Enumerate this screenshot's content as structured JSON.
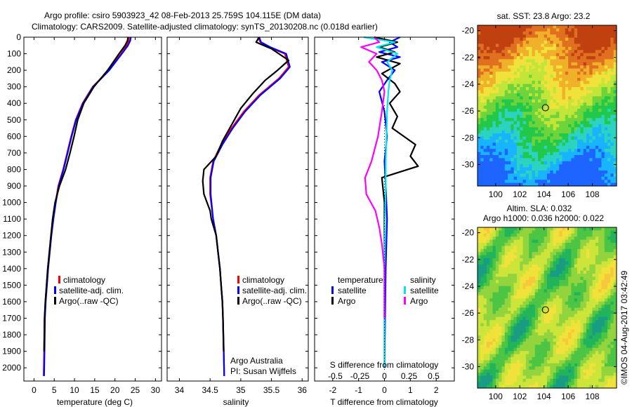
{
  "header": {
    "line1": "Argo profile: csiro 5903923_42 08-Feb-2013 25.759S 104.115E (DM data)",
    "line2": "Climatology: CARS2009. Satellite-adjusted climatology: synTS_20130208.nc (0.018d earlier)"
  },
  "side_label": "©IMOS 04-Aug-2017 03:42:49",
  "colors": {
    "climatology": "#ff0000",
    "satellite": "#0000ff",
    "argo": "#000000",
    "salinity_satellite": "#00e5ee",
    "salinity_argo": "#ff00ff"
  },
  "chart_data": [
    {
      "type": "line",
      "id": "temperature",
      "xlabel": "temperature (deg C)",
      "xticks": [
        0,
        5,
        10,
        15,
        20,
        25,
        30
      ],
      "xlim": [
        -2.5,
        31.5
      ],
      "ylim": [
        0,
        2080
      ],
      "yticks": [
        0,
        100,
        200,
        300,
        400,
        500,
        600,
        700,
        800,
        900,
        1000,
        1100,
        1200,
        1300,
        1400,
        1500,
        1600,
        1700,
        1800,
        1900,
        2000
      ],
      "legend": [
        "climatology",
        "satellite-adj. clim.",
        "Argo(..raw -QC)"
      ],
      "series": [
        {
          "name": "climatology",
          "color": "#ff0000",
          "x": [
            23.5,
            23.4,
            22.9,
            21.5,
            18.5,
            14.5,
            12,
            10.3,
            9.2,
            8.2,
            7.2,
            6,
            5.3,
            4.7,
            4.2,
            3.8,
            3.4,
            3.1,
            2.8,
            2.6,
            2.5,
            2.4
          ],
          "y": [
            0,
            20,
            50,
            100,
            200,
            300,
            400,
            500,
            600,
            700,
            800,
            900,
            1000,
            1100,
            1200,
            1300,
            1400,
            1500,
            1600,
            1700,
            1900,
            2050
          ]
        },
        {
          "name": "satellite-adj. clim.",
          "color": "#0000ff",
          "x": [
            23.9,
            23.8,
            23.2,
            21.7,
            18.6,
            14.6,
            12.1,
            10.4,
            9.3,
            8.3,
            7.3,
            6.1,
            5.4,
            4.8,
            4.3,
            3.9,
            3.5,
            3.2,
            2.9,
            2.7,
            2.6,
            2.5
          ],
          "y": [
            0,
            20,
            50,
            100,
            200,
            300,
            400,
            500,
            600,
            700,
            800,
            900,
            1000,
            1100,
            1200,
            1300,
            1400,
            1500,
            1600,
            1700,
            1900,
            2050
          ]
        },
        {
          "name": "Argo(..raw -QC)",
          "color": "#000000",
          "x": [
            23.2,
            23.1,
            22.5,
            21,
            18.2,
            14.8,
            12.3,
            10.8,
            9.9,
            8.9,
            7.8,
            6.3,
            5.2,
            4.6,
            4.2,
            3.8,
            3.4,
            3.1,
            2.8,
            2.6,
            2.5
          ],
          "y": [
            0,
            20,
            50,
            100,
            200,
            300,
            400,
            500,
            600,
            700,
            800,
            900,
            1000,
            1100,
            1200,
            1300,
            1400,
            1500,
            1600,
            1700,
            1900
          ]
        }
      ]
    },
    {
      "type": "line",
      "id": "salinity",
      "xlabel": "salinity",
      "xticks": [
        34,
        34.5,
        35,
        35.5,
        36
      ],
      "xlim": [
        33.8,
        36.1
      ],
      "ylim": [
        0,
        2080
      ],
      "legend": [
        "climatology",
        "satellite-adj. clim.",
        "Argo(..raw -QC)"
      ],
      "annotation": [
        "Argo Australia",
        "PI: Susan Wijffels"
      ],
      "series": [
        {
          "name": "climatology",
          "color": "#ff0000",
          "x": [
            35.28,
            35.32,
            35.45,
            35.72,
            35.78,
            35.62,
            35.3,
            35.05,
            34.85,
            34.68,
            34.55,
            34.5,
            34.5,
            34.55,
            34.6,
            34.63,
            34.66,
            34.68,
            34.7,
            34.71,
            34.72,
            34.73
          ],
          "y": [
            0,
            30,
            60,
            100,
            180,
            250,
            350,
            450,
            550,
            650,
            750,
            850,
            950,
            1100,
            1200,
            1300,
            1400,
            1500,
            1600,
            1700,
            1850,
            2050
          ]
        },
        {
          "name": "satellite-adj. clim.",
          "color": "#0000ff",
          "x": [
            35.3,
            35.33,
            35.48,
            35.74,
            35.8,
            35.64,
            35.32,
            35.07,
            34.87,
            34.7,
            34.56,
            34.51,
            34.51,
            34.55,
            34.6,
            34.63,
            34.66,
            34.68,
            34.7,
            34.71,
            34.72,
            34.73
          ],
          "y": [
            0,
            30,
            60,
            100,
            180,
            250,
            350,
            450,
            550,
            650,
            750,
            850,
            950,
            1100,
            1200,
            1300,
            1400,
            1500,
            1600,
            1700,
            1850,
            2050
          ]
        },
        {
          "name": "Argo(..raw -QC)",
          "color": "#000000",
          "x": [
            35.3,
            35.25,
            35.5,
            35.78,
            35.6,
            35.4,
            35.2,
            35,
            34.85,
            34.7,
            34.6,
            34.4,
            34.38,
            34.4,
            34.5,
            34.52,
            34.6,
            34.63,
            34.66,
            34.68,
            34.7,
            34.71,
            34.72
          ],
          "y": [
            0,
            30,
            70,
            140,
            200,
            260,
            340,
            430,
            530,
            630,
            720,
            800,
            870,
            950,
            1050,
            1100,
            1200,
            1300,
            1400,
            1500,
            1600,
            1700,
            1900
          ]
        }
      ]
    },
    {
      "type": "line",
      "id": "difference",
      "xlabel": "T difference from climatology",
      "top_xlabel": "S difference from climatology",
      "xticks": [
        -2,
        -1,
        0,
        1,
        2
      ],
      "top_xticks": [
        "-0.5",
        "-0.25",
        "0",
        "0.25",
        "0.5"
      ],
      "xlim": [
        -2.7,
        2.7
      ],
      "ylim": [
        0,
        2080
      ],
      "legend_titles": [
        "temperature",
        "salinity"
      ],
      "legend_entries": [
        "satellite",
        "Argo",
        "satellite",
        "Argo"
      ],
      "series": [
        {
          "name": "temperature satellite",
          "color": "#0000ff",
          "x": [
            0.6,
            0.2,
            0.5,
            -0.2,
            0.6,
            -0.1,
            0.4,
            0.1,
            -0.2,
            0,
            0.1,
            0,
            0.05,
            0.1,
            0.05,
            0
          ],
          "y": [
            0,
            30,
            60,
            90,
            120,
            150,
            200,
            260,
            330,
            450,
            600,
            750,
            900,
            1100,
            1400,
            2000
          ]
        },
        {
          "name": "temperature Argo",
          "color": "#000000",
          "x": [
            -0.4,
            0.5,
            -0.2,
            0.4,
            -0.3,
            0.6,
            -0.1,
            0.4,
            0.6,
            0.2,
            0.5,
            0.3,
            1.2,
            1,
            1.3,
            -0.1,
            0,
            0,
            0,
            0,
            0,
            0
          ],
          "y": [
            0,
            30,
            60,
            90,
            120,
            160,
            220,
            280,
            330,
            400,
            480,
            550,
            650,
            720,
            780,
            850,
            1000,
            1200,
            1400,
            1600,
            1800,
            2000
          ]
        },
        {
          "name": "salinity satellite",
          "color": "#00e5ee",
          "x": [
            -0.8,
            0.4,
            -0.3,
            0.5,
            0.1,
            0.3,
            0.2,
            0.15,
            0.1,
            0.08,
            0.05,
            0.05,
            0.02,
            0,
            0,
            0
          ],
          "y": [
            0,
            30,
            60,
            100,
            150,
            200,
            260,
            330,
            450,
            600,
            750,
            900,
            1100,
            1400,
            1700,
            2000
          ]
        },
        {
          "name": "salinity Argo",
          "color": "#ff00ff",
          "x": [
            -0.4,
            -0.2,
            -0.9,
            -0.3,
            -0.6,
            -0.3,
            -0.1,
            0,
            -0.1,
            -0.25,
            -0.5,
            -0.75,
            -0.7,
            -0.35,
            -0.2,
            -0.1,
            0,
            0
          ],
          "y": [
            0,
            30,
            60,
            100,
            150,
            200,
            260,
            330,
            450,
            600,
            750,
            850,
            950,
            1050,
            1150,
            1250,
            1400,
            1700
          ]
        }
      ]
    },
    {
      "type": "heatmap",
      "id": "sst-map",
      "title": "sat. SST: 23.8 Argo: 23.2",
      "xticks": [
        100,
        102,
        104,
        106,
        108
      ],
      "yticks": [
        -20,
        -22,
        -24,
        -26,
        -28,
        -30
      ],
      "xlim": [
        98.5,
        110
      ],
      "ylim": [
        -31.6,
        -19.6
      ],
      "marker": {
        "lon": 104.115,
        "lat": -25.759
      },
      "palette": [
        "#1e64ff",
        "#19b4ff",
        "#2bd3c0",
        "#22c84a",
        "#6fd43a",
        "#c2e53a",
        "#f0e23a",
        "#f0b02a",
        "#e07020",
        "#c04010"
      ]
    },
    {
      "type": "heatmap",
      "id": "sla-map",
      "title": "Altim. SLA: 0.032",
      "subtitle": "Argo h1000: 0.036 h2000: 0.022",
      "xticks": [
        100,
        102,
        104,
        106,
        108
      ],
      "yticks": [
        -20,
        -22,
        -24,
        -26,
        -28,
        -30
      ],
      "xlim": [
        98.5,
        110
      ],
      "ylim": [
        -31.6,
        -19.6
      ],
      "marker": {
        "lon": 104.115,
        "lat": -25.759
      },
      "palette": [
        "#1a9c84",
        "#22b45a",
        "#4cc444",
        "#92d43e",
        "#cde43a",
        "#f0e23a",
        "#f7c83a"
      ]
    }
  ]
}
